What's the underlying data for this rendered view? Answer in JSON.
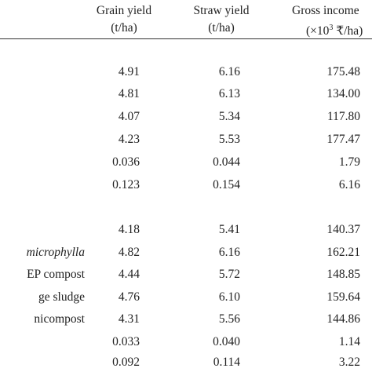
{
  "header": {
    "grain_yield": "Grain yield",
    "grain_unit": "(t/ha)",
    "straw_yield": "Straw yield",
    "straw_unit": "(t/ha)",
    "gross_income": "Gross income",
    "gross_unit_prefix": "(×10",
    "gross_unit_exp": "3",
    "gross_unit_suffix": " ₹/ha)"
  },
  "section1": [
    {
      "grain": "4.91",
      "straw": "6.16",
      "gross": "175.48"
    },
    {
      "grain": "4.81",
      "straw": "6.13",
      "gross": "134.00"
    },
    {
      "grain": "4.07",
      "straw": "5.34",
      "gross": "117.80"
    },
    {
      "grain": "4.23",
      "straw": "5.53",
      "gross": "177.47"
    },
    {
      "grain": "0.036",
      "straw": "0.044",
      "gross": "1.79"
    },
    {
      "grain": "0.123",
      "straw": "0.154",
      "gross": "6.16"
    }
  ],
  "section2": [
    {
      "label": "",
      "grain": "4.18",
      "straw": "5.41",
      "gross": "140.37"
    },
    {
      "label": "microphylla",
      "grain": "4.82",
      "straw": "6.16",
      "gross": "162.21"
    },
    {
      "label": "EP compost",
      "grain": "4.44",
      "straw": "5.72",
      "gross": "148.85"
    },
    {
      "label": "ge sludge",
      "grain": "4.76",
      "straw": "6.10",
      "gross": "159.64"
    },
    {
      "label": "nicompost",
      "grain": "4.31",
      "straw": "5.56",
      "gross": "144.86"
    },
    {
      "label": "",
      "grain": "0.033",
      "straw": "0.040",
      "gross": "1.14"
    },
    {
      "label": "",
      "grain": "0.092",
      "straw": "0.114",
      "gross": "3.22"
    }
  ]
}
